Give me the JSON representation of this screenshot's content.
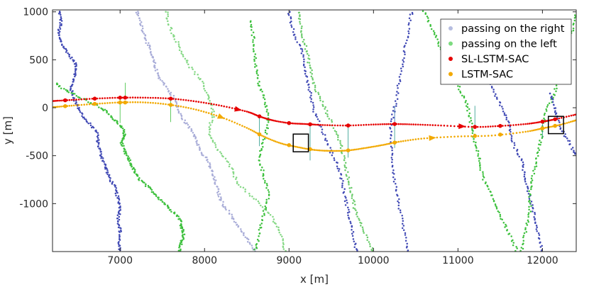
{
  "chart_data": {
    "type": "scatter",
    "title": "",
    "xlabel": "x [m]",
    "ylabel": "y [m]",
    "xlim": [
      6200,
      12400
    ],
    "ylim": [
      -1500,
      1020
    ],
    "xticks": [
      7000,
      8000,
      9000,
      10000,
      11000,
      12000
    ],
    "yticks": [
      -1000,
      -500,
      0,
      500,
      1000
    ],
    "grid": false,
    "legend": "top-right",
    "legend_entries": [
      {
        "label": "passing on the right",
        "color": "#b6bde0",
        "marker": "dot"
      },
      {
        "label": "passing on the left",
        "color": "#7ddb80",
        "marker": "dot"
      },
      {
        "label": "SL-LSTM-SAC",
        "color": "#e60000",
        "marker": "dot"
      },
      {
        "label": "LSTM-SAC",
        "color": "#f2a900",
        "marker": "dot"
      }
    ],
    "series": [
      {
        "name": "SL-LSTM-SAC",
        "color": "#e60000",
        "x": [
          6200,
          6400,
          6700,
          7000,
          7300,
          7600,
          7900,
          8200,
          8500,
          8650,
          8800,
          9000,
          9200,
          9400,
          9700,
          10000,
          10250,
          10500,
          10800,
          11200,
          11500,
          11800,
          12000,
          12150,
          12400
        ],
        "y": [
          70,
          80,
          95,
          105,
          105,
          95,
          65,
          20,
          -40,
          -90,
          -130,
          -160,
          -170,
          -180,
          -185,
          -175,
          -170,
          -175,
          -185,
          -200,
          -190,
          -170,
          -145,
          -120,
          -70
        ],
        "markers_x": [
          6350,
          6700,
          7000,
          7060,
          7600,
          8650,
          9000,
          9250,
          9700,
          10250,
          11200,
          11500,
          12000,
          12150
        ],
        "arrows_x": [
          8400,
          11050
        ]
      },
      {
        "name": "LSTM-SAC",
        "color": "#f2a900",
        "x": [
          6200,
          6400,
          6700,
          7000,
          7300,
          7600,
          7900,
          8200,
          8500,
          8700,
          8900,
          9100,
          9300,
          9500,
          9700,
          9900,
          10100,
          10300,
          10600,
          11000,
          11400,
          11800,
          12000,
          12200,
          12400
        ],
        "y": [
          5,
          20,
          40,
          55,
          55,
          30,
          -20,
          -100,
          -210,
          -300,
          -370,
          -410,
          -440,
          -450,
          -445,
          -420,
          -390,
          -355,
          -320,
          -300,
          -290,
          -250,
          -215,
          -180,
          -130
        ],
        "markers_x": [
          6350,
          6700,
          7000,
          7060,
          7600,
          8650,
          9000,
          9250,
          9700,
          10250,
          11200,
          11500,
          12000,
          12150
        ],
        "arrows_x": [
          8200,
          10700
        ]
      }
    ],
    "obstacles": [
      {
        "class": "passing on the right",
        "color": "#3f48b4",
        "x": [
          6280,
          6300,
          6270,
          6320,
          6400,
          6480,
          6460,
          6420,
          6460,
          6520,
          6600,
          6720,
          6740,
          6770,
          6820,
          6860,
          6930,
          6970,
          7000,
          6980,
          7000,
          6990,
          6990
        ]
      },
      {
        "class": "passing on the left",
        "color": "#3cc03c",
        "x": [
          6250,
          6400,
          6600,
          6800,
          6900,
          7000,
          7050,
          7020,
          7050,
          7100,
          7150,
          7200,
          7300,
          7400,
          7500,
          7600,
          7700,
          7730,
          7750,
          7720,
          7700
        ]
      },
      {
        "class": "passing on the right",
        "color": "#a9add8",
        "x": [
          7200,
          7250,
          7300,
          7350,
          7400,
          7450,
          7550,
          7650,
          7700,
          7800,
          7900,
          7950,
          8050,
          8100,
          8150,
          8200,
          8300,
          8400,
          8500,
          8600
        ]
      },
      {
        "class": "passing on the left",
        "color": "#85d885",
        "x": [
          7550,
          7600,
          7700,
          7800,
          7950,
          8050,
          8100,
          8050,
          8150,
          8300,
          8400,
          8600,
          8800,
          8900,
          8950
        ]
      },
      {
        "class": "passing on the left",
        "color": "#3cc03c",
        "x": [
          8550,
          8580,
          8600,
          8630,
          8700,
          8750,
          8720,
          8650,
          8700,
          8750,
          8700,
          8650,
          8600
        ]
      },
      {
        "class": "passing on the left",
        "color": "#6acb6a",
        "x": [
          9120,
          9150,
          9200,
          9250,
          9300,
          9400,
          9500,
          9600,
          9650,
          9700,
          9750,
          9800,
          9900,
          10000
        ]
      },
      {
        "class": "passing on the right",
        "color": "#3f48b4",
        "x": [
          9000,
          9050,
          9150,
          9200,
          9250,
          9300,
          9400,
          9500,
          9600,
          9650,
          9700,
          9750,
          9800
        ]
      },
      {
        "class": "passing on the right",
        "color": "#3f48b4",
        "x": [
          10450,
          10400,
          10350,
          10300,
          10250,
          10200,
          10220,
          10250,
          10300,
          10350,
          10400
        ]
      },
      {
        "class": "passing on the left",
        "color": "#3cc03c",
        "x": [
          10600,
          10700,
          10800,
          10900,
          11000,
          11100,
          11150,
          11200,
          11250,
          11300,
          11400,
          11500,
          11600,
          11700
        ]
      },
      {
        "class": "passing on the right",
        "color": "#3f48b4",
        "x": [
          11200,
          11300,
          11400,
          11500,
          11600,
          11650,
          11750,
          11800,
          11850,
          11900,
          11950,
          12000
        ]
      },
      {
        "class": "passing on the left",
        "color": "#3cc03c",
        "x": [
          12400,
          12350,
          12250,
          12200,
          12150,
          12050,
          12000,
          11950,
          11900,
          11850,
          11850,
          11800,
          11750
        ]
      },
      {
        "class": "passing on the right",
        "color": "#3f48b4",
        "x": [
          12100,
          12150,
          12200,
          12300,
          12400
        ]
      }
    ],
    "boxes": [
      {
        "x": [
          9050,
          9230
        ],
        "y": [
          -460,
          -275
        ]
      },
      {
        "x": [
          12070,
          12250
        ],
        "y": [
          -270,
          -90
        ]
      }
    ]
  }
}
